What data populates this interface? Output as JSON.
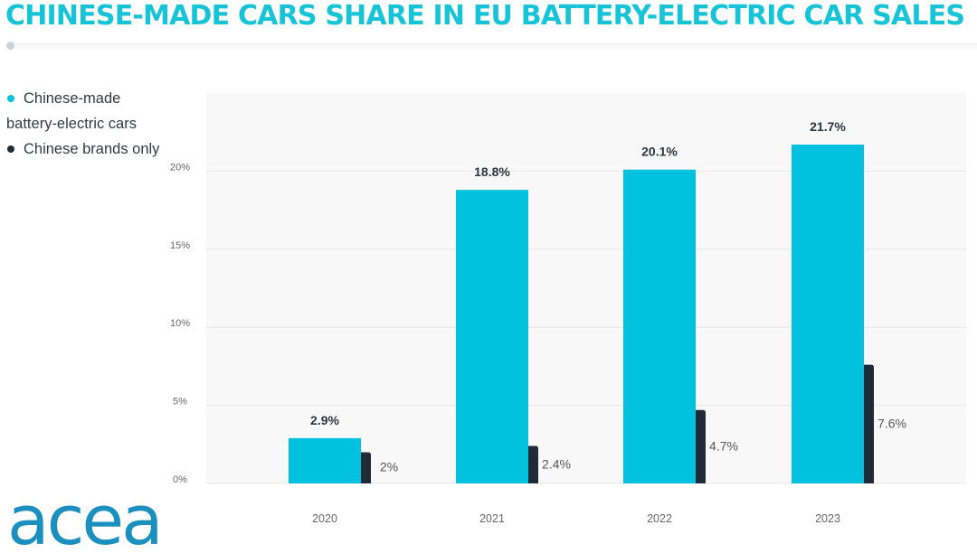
{
  "title": "CHINESE-MADE CARS SHARE IN EU BATTERY-ELECTRIC CAR SALES",
  "logo_text": "acea",
  "colors": {
    "title": "#17c3d6",
    "series_1": "#00c2de",
    "series_2": "#1f2b36",
    "panel": "#f8f8f8",
    "gridline": "#e6e6e6",
    "tick_text": "#666666",
    "label_dark": "#2b3640",
    "label_light": "#555555",
    "logo": "#1b8fbe"
  },
  "legend": {
    "items": [
      {
        "label_line1": "Chinese-made",
        "label_line2": "battery-electric cars",
        "color": "#00c2de"
      },
      {
        "label_line1": "Chinese brands only",
        "label_line2": "",
        "color": "#1f2b36"
      }
    ]
  },
  "chart_data": {
    "type": "bar",
    "title": "CHINESE-MADE CARS SHARE IN EU BATTERY-ELECTRIC CAR SALES",
    "xlabel": "",
    "ylabel": "",
    "ylim": [
      0,
      25
    ],
    "yticks": [
      0,
      5,
      10,
      15,
      20
    ],
    "ytick_labels": [
      "0%",
      "5%",
      "10%",
      "15%",
      "20%"
    ],
    "grid": true,
    "legend_position": "top-left",
    "categories": [
      "2020",
      "2021",
      "2022",
      "2023"
    ],
    "series": [
      {
        "name": "Chinese-made battery-electric cars",
        "values": [
          2.9,
          18.8,
          20.1,
          21.7
        ],
        "labels": [
          "2.9%",
          "18.8%",
          "20.1%",
          "21.7%"
        ]
      },
      {
        "name": "Chinese brands only",
        "values": [
          2.0,
          2.4,
          4.7,
          7.6
        ],
        "labels": [
          "2%",
          "2.4%",
          "4.7%",
          "7.6%"
        ]
      }
    ]
  }
}
